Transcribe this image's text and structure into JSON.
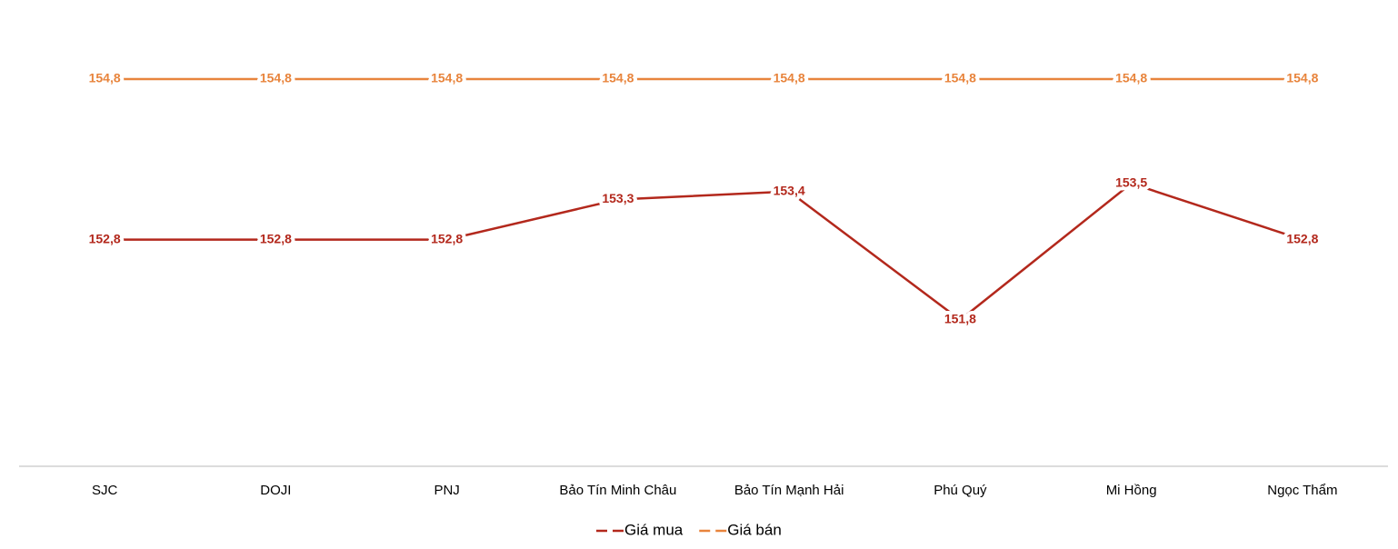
{
  "chart_data": {
    "type": "line",
    "categories": [
      "SJC",
      "DOJI",
      "PNJ",
      "Bảo Tín Minh Châu",
      "Bảo Tín Mạnh Hải",
      "Phú Quý",
      "Mi Hồng",
      "Ngọc Thẩm"
    ],
    "series": [
      {
        "name": "Giá mua",
        "color": "#b3281c",
        "values": [
          152.8,
          152.8,
          152.8,
          153.3,
          153.4,
          151.8,
          153.5,
          152.8
        ],
        "value_labels": [
          "152,8",
          "152,8",
          "152,8",
          "153,3",
          "153,4",
          "151,8",
          "153,5",
          "152,8"
        ]
      },
      {
        "name": "Giá bán",
        "color": "#e8843c",
        "values": [
          154.8,
          154.8,
          154.8,
          154.8,
          154.8,
          154.8,
          154.8,
          154.8
        ],
        "value_labels": [
          "154,8",
          "154,8",
          "154,8",
          "154,8",
          "154,8",
          "154,8",
          "154,8",
          "154,8"
        ]
      }
    ],
    "legend": "bottom"
  }
}
